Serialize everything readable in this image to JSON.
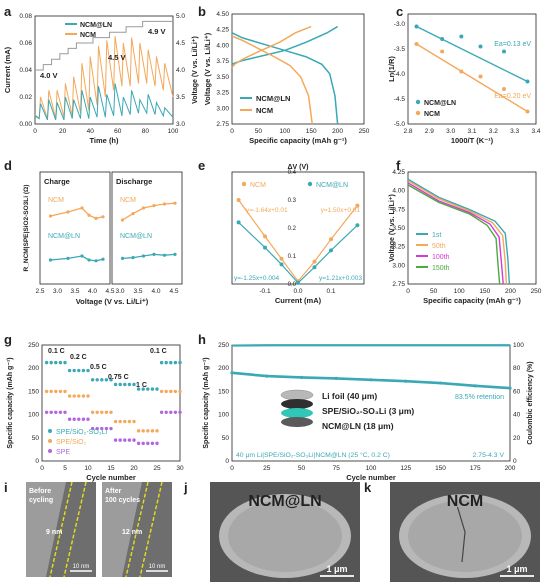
{
  "colors": {
    "teal": "#3aa8b5",
    "orange": "#f4a85a",
    "green": "#4caa3e",
    "magenta": "#d43bd6",
    "purple": "#b266e0",
    "gray": "#9a9a9a"
  },
  "panels": {
    "a": {
      "label": "a",
      "xlabel": "Time (h)",
      "ylabel": "Current (mA)",
      "y2label": "Voltage (V vs. Li/Li⁺)",
      "legend": [
        "NCM@LN",
        "NCM"
      ],
      "notes": [
        "4.0 V",
        "4.5 V",
        "4.9 V"
      ],
      "xticks": [
        "0",
        "20",
        "40",
        "60",
        "80",
        "100"
      ],
      "yticks": [
        "0.00",
        "0.02",
        "0.04",
        "0.06",
        "0.08"
      ],
      "y2ticks": [
        "3.0",
        "3.5",
        "4.0",
        "4.5",
        "5.0"
      ]
    },
    "b": {
      "label": "b",
      "xlabel": "Specific capacity (mAh g⁻¹)",
      "ylabel": "Voltage (V vs. Li/Li⁺)",
      "legend": [
        "NCM@LN",
        "NCM"
      ],
      "xticks": [
        "0",
        "50",
        "100",
        "150",
        "200",
        "250"
      ],
      "yticks": [
        "2.75",
        "3.00",
        "3.25",
        "3.50",
        "3.75",
        "4.00",
        "4.25",
        "4.50"
      ]
    },
    "c": {
      "label": "c",
      "xlabel": "1000/T (K⁻¹)",
      "ylabel": "Ln(1/R)",
      "legend": [
        "NCM@LN",
        "NCM"
      ],
      "notes": [
        "Ea=0.13 eV",
        "Ea=0.20 eV"
      ],
      "xticks": [
        "2.8",
        "2.9",
        "3.0",
        "3.1",
        "3.2",
        "3.3",
        "3.4"
      ],
      "yticks": [
        "-5.0",
        "-4.5",
        "-4.0",
        "-3.5",
        "-3.0"
      ]
    },
    "d": {
      "label": "d",
      "xlabel": "Voltage (V vs. Li/Li⁺)",
      "ylabel": "R_NCM|SPE|SiO2-SO3Li (Ω)",
      "sub_titles": [
        "Charge",
        "Discharge"
      ],
      "series_labels": [
        "NCM",
        "NCM@LN",
        "NCM",
        "NCM@LN"
      ],
      "xticks": [
        "2.5",
        "3.0",
        "3.5",
        "4.0",
        "4.5",
        "3.0",
        "3.5",
        "4.0",
        "4.5"
      ]
    },
    "e": {
      "label": "e",
      "xlabel": "Current (mA)",
      "ylabel": "ΔV (V)",
      "legend": [
        "NCM",
        "NCM@LN"
      ],
      "equations": [
        "y=-1.64x+0.01",
        "y=1.50x+0.01",
        "y=-1.25x+0.004",
        "y=1.21x+0.003"
      ],
      "xticks": [
        "-0.1",
        "0.0",
        "0.1"
      ],
      "yticks": [
        "0.0",
        "0.1",
        "0.2",
        "0.3",
        "0.4"
      ]
    },
    "f": {
      "label": "f",
      "xlabel": "Specific capacity (mAh g⁻¹)",
      "ylabel": "Voltage (V vs. Li/Li⁺)",
      "legend": [
        "1st",
        "50th",
        "100th",
        "150th"
      ],
      "xticks": [
        "0",
        "50",
        "100",
        "150",
        "200",
        "250"
      ],
      "yticks": [
        "2.75",
        "3.00",
        "3.25",
        "3.50",
        "3.75",
        "4.00",
        "4.25"
      ]
    },
    "g": {
      "label": "g",
      "xlabel": "Cycle number",
      "ylabel": "Specific capacity (mAh g⁻¹)",
      "legend": [
        "SPE/SiO₂-SO₃Li",
        "SPE/SiO₂",
        "SPE"
      ],
      "rates": [
        "0.1 C",
        "0.2 C",
        "0.5 C",
        "0.75 C",
        "1 C",
        "0.1 C"
      ],
      "xticks": [
        "0",
        "5",
        "10",
        "15",
        "20",
        "25",
        "30"
      ],
      "yticks": [
        "0",
        "50",
        "100",
        "150",
        "200",
        "250"
      ]
    },
    "h": {
      "label": "h",
      "xlabel": "Cycle number",
      "ylabel": "Specific capacity (mAh g⁻¹)",
      "y2label": "Coulombic efficiency (%)",
      "layers": [
        "Li foil (40 μm)",
        "SPE/SiO₂-SO₃Li (3 μm)",
        "NCM@LN (18 μm)"
      ],
      "retention": "83.5% retention",
      "footer": "40 μm Li|SPE/SiO₂-SO₃Li|NCM@LN (25 °C, 0.2 C)",
      "range": "2.75-4.3 V",
      "xticks": [
        "0",
        "25",
        "50",
        "75",
        "100",
        "125",
        "150",
        "175",
        "200"
      ],
      "yticks": [
        "0",
        "50",
        "100",
        "150",
        "200",
        "250"
      ],
      "y2ticks": [
        "0",
        "20",
        "40",
        "60",
        "80",
        "100"
      ]
    },
    "i": {
      "label": "i",
      "tags": [
        "Before cycling",
        "After 100 cycles"
      ],
      "thickness": [
        "9 nm",
        "12 nm"
      ],
      "scale": "10 nm"
    },
    "j": {
      "label": "j",
      "title": "NCM@LN",
      "scale": "1 μm"
    },
    "k": {
      "label": "k",
      "title": "NCM",
      "scale": "1 μm"
    }
  },
  "chart_data": [
    {
      "type": "line",
      "panel": "a",
      "xlim": [
        0,
        100
      ],
      "ylim": [
        0,
        0.08
      ],
      "y2lim": [
        3.0,
        5.0
      ],
      "series": [
        {
          "name": "NCM@LN",
          "x": [
            0,
            3,
            4,
            9,
            10,
            15,
            16,
            21,
            22,
            27,
            28,
            33,
            34,
            39,
            40,
            45,
            46,
            51,
            52,
            57,
            58,
            63,
            64,
            69,
            70,
            75,
            76,
            81,
            82,
            87,
            88,
            93,
            94,
            100
          ],
          "y": [
            0.006,
            0.004,
            0.015,
            0.003,
            0.018,
            0.003,
            0.016,
            0.003,
            0.02,
            0.004,
            0.018,
            0.004,
            0.025,
            0.004,
            0.02,
            0.005,
            0.028,
            0.005,
            0.022,
            0.006,
            0.03,
            0.006,
            0.02,
            0.007,
            0.025,
            0.008,
            0.018,
            0.008,
            0.022,
            0.007,
            0.016,
            0.006,
            0.012,
            0.005
          ]
        },
        {
          "name": "NCM",
          "x": [
            0,
            3,
            4,
            9,
            10,
            15,
            16,
            21,
            22,
            27,
            28,
            33,
            34,
            39,
            40,
            45,
            46,
            51,
            52,
            57,
            58,
            63,
            64,
            69,
            70,
            75,
            76,
            81,
            82,
            87,
            88,
            93,
            94,
            100
          ],
          "y": [
            0.007,
            0.004,
            0.02,
            0.004,
            0.025,
            0.004,
            0.025,
            0.005,
            0.03,
            0.006,
            0.035,
            0.008,
            0.045,
            0.01,
            0.05,
            0.014,
            0.058,
            0.02,
            0.062,
            0.025,
            0.065,
            0.028,
            0.06,
            0.028,
            0.064,
            0.03,
            0.06,
            0.03,
            0.055,
            0.028,
            0.05,
            0.025,
            0.045,
            0.02
          ]
        },
        {
          "name": "Voltage",
          "axis": "y2",
          "x": [
            0,
            6,
            6,
            12,
            12,
            18,
            18,
            24,
            24,
            30,
            30,
            36,
            36,
            42,
            42,
            48,
            48,
            54,
            54,
            60,
            60,
            66,
            66,
            72,
            72,
            78,
            78,
            84,
            84,
            90,
            90,
            100
          ],
          "y": [
            4.0,
            4.0,
            4.1,
            4.1,
            4.2,
            4.2,
            4.3,
            4.3,
            4.4,
            4.4,
            4.5,
            4.5,
            4.5,
            4.5,
            4.6,
            4.6,
            4.6,
            4.6,
            4.7,
            4.7,
            4.7,
            4.7,
            4.8,
            4.8,
            4.8,
            4.8,
            4.9,
            4.9,
            4.9,
            4.9,
            4.9,
            4.9
          ]
        }
      ]
    },
    {
      "type": "line",
      "panel": "b",
      "xlim": [
        0,
        250
      ],
      "ylim": [
        2.75,
        4.5
      ],
      "series": [
        {
          "name": "NCM@LN charge",
          "x": [
            0,
            5,
            20,
            60,
            100,
            140,
            180,
            200
          ],
          "y": [
            3.7,
            3.72,
            3.76,
            3.84,
            3.92,
            4.05,
            4.2,
            4.3
          ]
        },
        {
          "name": "NCM@LN discharge",
          "x": [
            0,
            20,
            60,
            100,
            140,
            170,
            185,
            195,
            200
          ],
          "y": [
            4.2,
            4.12,
            4.02,
            3.92,
            3.82,
            3.7,
            3.55,
            3.2,
            2.75
          ]
        },
        {
          "name": "NCM charge",
          "x": [
            0,
            5,
            20,
            50,
            90,
            120,
            150
          ],
          "y": [
            3.65,
            3.7,
            3.78,
            3.9,
            4.05,
            4.2,
            4.3
          ]
        },
        {
          "name": "NCM discharge",
          "x": [
            0,
            20,
            50,
            80,
            110,
            130,
            145,
            152
          ],
          "y": [
            4.15,
            4.08,
            3.95,
            3.82,
            3.68,
            3.5,
            3.2,
            2.75
          ]
        }
      ]
    },
    {
      "type": "scatter",
      "panel": "c",
      "xlim": [
        2.8,
        3.4
      ],
      "ylim": [
        -5.0,
        -2.8
      ],
      "series": [
        {
          "name": "NCM@LN",
          "x": [
            2.84,
            2.96,
            3.05,
            3.14,
            3.25,
            3.36
          ],
          "y": [
            -3.05,
            -3.3,
            -3.25,
            -3.45,
            -3.55,
            -4.15
          ]
        },
        {
          "name": "NCM",
          "x": [
            2.84,
            2.96,
            3.05,
            3.14,
            3.25,
            3.36
          ],
          "y": [
            -3.4,
            -3.55,
            -3.95,
            -4.05,
            -4.3,
            -4.75
          ]
        }
      ]
    },
    {
      "type": "line",
      "panel": "d",
      "xlim": [
        2.5,
        4.5
      ],
      "series": [
        {
          "name": "NCM charge",
          "x": [
            2.8,
            3.3,
            3.7,
            3.9,
            4.1,
            4.3
          ],
          "y": [
            185,
            190,
            195,
            186,
            182,
            184
          ]
        },
        {
          "name": "NCM@LN charge",
          "x": [
            2.8,
            3.3,
            3.7,
            3.9,
            4.1,
            4.3
          ],
          "y": [
            130,
            132,
            135,
            130,
            129,
            131
          ]
        },
        {
          "name": "NCM discharge",
          "x": [
            2.8,
            3.1,
            3.4,
            3.7,
            4.0,
            4.3
          ],
          "y": [
            180,
            188,
            195,
            198,
            200,
            201
          ]
        },
        {
          "name": "NCM@LN discharge",
          "x": [
            2.8,
            3.1,
            3.4,
            3.7,
            4.0,
            4.3
          ],
          "y": [
            132,
            133,
            135,
            137,
            136,
            137
          ]
        }
      ]
    },
    {
      "type": "scatter",
      "panel": "e",
      "xlim": [
        -0.2,
        0.2
      ],
      "ylim": [
        0,
        0.4
      ],
      "series": [
        {
          "name": "NCM",
          "x": [
            -0.18,
            -0.1,
            -0.05,
            0,
            0.05,
            0.1,
            0.18
          ],
          "y": [
            0.3,
            0.17,
            0.09,
            0.01,
            0.08,
            0.16,
            0.28
          ]
        },
        {
          "name": "NCM@LN",
          "x": [
            -0.18,
            -0.1,
            -0.05,
            0,
            0.05,
            0.1,
            0.18
          ],
          "y": [
            0.22,
            0.13,
            0.07,
            0.004,
            0.06,
            0.12,
            0.21
          ]
        }
      ]
    },
    {
      "type": "line",
      "panel": "f",
      "xlim": [
        0,
        250
      ],
      "ylim": [
        2.75,
        4.3
      ],
      "series": [
        {
          "name": "1st",
          "x": [
            0,
            60,
            120,
            170,
            190,
            195,
            198
          ],
          "y": [
            4.2,
            3.95,
            3.78,
            3.62,
            3.45,
            3.1,
            2.75
          ]
        },
        {
          "name": "50th",
          "x": [
            0,
            60,
            120,
            165,
            185,
            190,
            192
          ],
          "y": [
            4.18,
            3.93,
            3.76,
            3.6,
            3.42,
            3.05,
            2.75
          ]
        },
        {
          "name": "100th",
          "x": [
            0,
            60,
            120,
            160,
            178,
            183,
            186
          ],
          "y": [
            4.15,
            3.9,
            3.74,
            3.58,
            3.4,
            3.0,
            2.75
          ]
        },
        {
          "name": "150th",
          "x": [
            0,
            60,
            120,
            155,
            172,
            176,
            179
          ],
          "y": [
            4.12,
            3.88,
            3.72,
            3.56,
            3.38,
            3.0,
            2.75
          ]
        }
      ]
    },
    {
      "type": "scatter",
      "panel": "g",
      "xlim": [
        0,
        30
      ],
      "ylim": [
        0,
        250
      ],
      "series": [
        {
          "name": "SPE/SiO₂-SO₃Li",
          "y": [
            212,
            212,
            212,
            212,
            212,
            195,
            195,
            195,
            195,
            195,
            175,
            175,
            175,
            175,
            175,
            165,
            165,
            165,
            165,
            165,
            155,
            155,
            155,
            155,
            155,
            212,
            212,
            212,
            212,
            212
          ]
        },
        {
          "name": "SPE/SiO₂",
          "y": [
            150,
            150,
            150,
            150,
            150,
            140,
            140,
            140,
            140,
            140,
            105,
            105,
            105,
            105,
            105,
            85,
            85,
            85,
            85,
            85,
            65,
            65,
            65,
            65,
            65,
            150,
            150,
            150,
            150,
            150
          ]
        },
        {
          "name": "SPE",
          "y": [
            105,
            105,
            105,
            105,
            105,
            90,
            90,
            90,
            90,
            90,
            70,
            70,
            70,
            70,
            70,
            45,
            45,
            45,
            45,
            45,
            38,
            38,
            38,
            38,
            38,
            105,
            105,
            105,
            105,
            105
          ]
        }
      ]
    },
    {
      "type": "scatter",
      "panel": "h",
      "xlim": [
        0,
        200
      ],
      "ylim": [
        0,
        250
      ],
      "y2lim": [
        0,
        100
      ],
      "series": [
        {
          "name": "Specific capacity",
          "x": [
            0,
            25,
            50,
            75,
            100,
            125,
            150,
            175,
            200
          ],
          "y": [
            190,
            183,
            180,
            178,
            175,
            172,
            168,
            162,
            157
          ]
        },
        {
          "name": "Coulombic efficiency",
          "axis": "y2",
          "x": [
            0,
            25,
            50,
            75,
            100,
            125,
            150,
            175,
            200
          ],
          "y": [
            99.5,
            99.8,
            99.8,
            99.8,
            99.8,
            99.8,
            99.8,
            99.8,
            99.8
          ]
        }
      ]
    }
  ]
}
